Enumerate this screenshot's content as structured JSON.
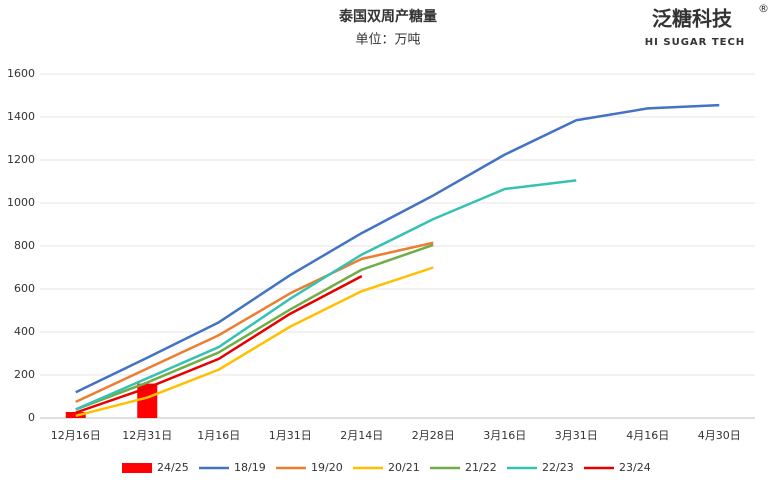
{
  "chart_data": {
    "type": "combo",
    "title": "泰国双周产糖量",
    "subtitle": "单位：万吨",
    "logo": {
      "name": "泛糖科技",
      "mark": "®",
      "tagline": "HI SUGAR TECH"
    },
    "categories": [
      "12月16日",
      "12月31日",
      "1月16日",
      "1月31日",
      "2月14日",
      "2月28日",
      "3月16日",
      "3月31日",
      "4月16日",
      "4月30日"
    ],
    "series": [
      {
        "name": "24/25",
        "type": "bar",
        "color": "#ff0000",
        "values": [
          28,
          160,
          null,
          null,
          null,
          null,
          null,
          null,
          null,
          null
        ]
      },
      {
        "name": "18/19",
        "type": "line",
        "color": "#4472c4",
        "values": [
          120,
          280,
          445,
          665,
          860,
          1035,
          1225,
          1385,
          1440,
          1455
        ]
      },
      {
        "name": "19/20",
        "type": "line",
        "color": "#ed7d31",
        "values": [
          75,
          230,
          385,
          580,
          740,
          815,
          null,
          null,
          null,
          null
        ]
      },
      {
        "name": "20/21",
        "type": "line",
        "color": "#ffc000",
        "values": [
          10,
          95,
          225,
          425,
          590,
          700,
          null,
          null,
          null,
          null
        ]
      },
      {
        "name": "21/22",
        "type": "line",
        "color": "#70ad47",
        "values": [
          40,
          165,
          305,
          505,
          690,
          805,
          null,
          null,
          null,
          null
        ]
      },
      {
        "name": "22/23",
        "type": "line",
        "color": "#36c1b3",
        "values": [
          40,
          185,
          330,
          555,
          760,
          925,
          1065,
          1105,
          null,
          null
        ]
      },
      {
        "name": "23/24",
        "type": "line",
        "color": "#e60000",
        "values": [
          25,
          140,
          275,
          485,
          660,
          null,
          null,
          null,
          null,
          null
        ]
      }
    ],
    "ylim": [
      0,
      1600
    ],
    "yticks": [
      0,
      200,
      400,
      600,
      800,
      1000,
      1200,
      1400,
      1600
    ],
    "grid": true,
    "legend": "bottom"
  }
}
